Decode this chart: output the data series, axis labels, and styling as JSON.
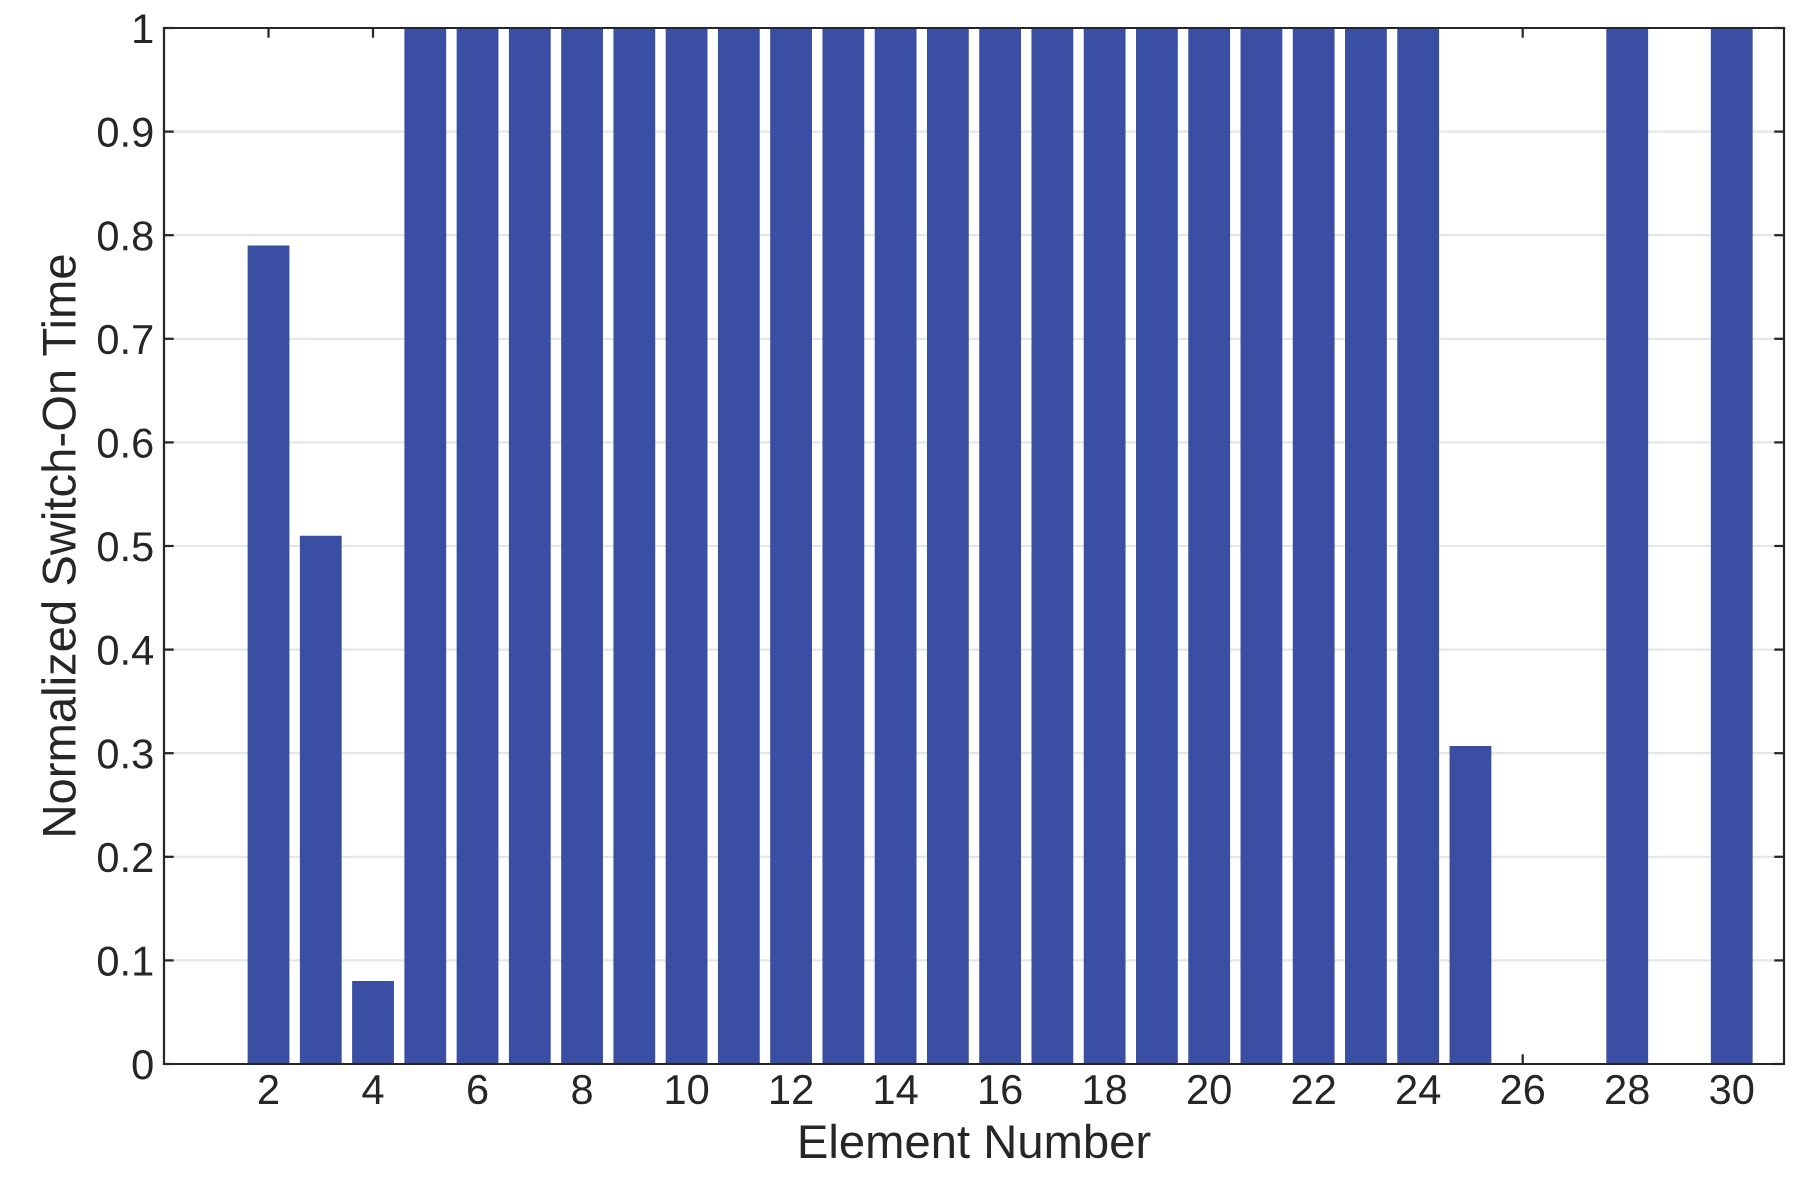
{
  "chart_data": {
    "type": "bar",
    "xlabel": "Element Number",
    "ylabel": "Normalized Switch-On Time",
    "x": [
      2,
      3,
      4,
      5,
      6,
      7,
      8,
      9,
      10,
      11,
      12,
      13,
      14,
      15,
      16,
      17,
      18,
      19,
      20,
      21,
      22,
      23,
      24,
      25,
      26,
      27,
      28,
      29,
      30
    ],
    "values": [
      0.79,
      0.51,
      0.08,
      1,
      1,
      1,
      1,
      1,
      1,
      1,
      1,
      1,
      1,
      1,
      1,
      1,
      1,
      1,
      1,
      1,
      1,
      1,
      1,
      0.307,
      0,
      0,
      1,
      0,
      1
    ],
    "color": "#3a4fa3",
    "xlim": [
      0,
      31
    ],
    "xticks": [
      2,
      4,
      6,
      8,
      10,
      12,
      14,
      16,
      18,
      20,
      22,
      24,
      26,
      28,
      30
    ],
    "ylim": [
      0,
      1
    ],
    "yticks": [
      0,
      0.1,
      0.2,
      0.3,
      0.4,
      0.5,
      0.6,
      0.7,
      0.8,
      0.9,
      1
    ],
    "grid": "y"
  }
}
